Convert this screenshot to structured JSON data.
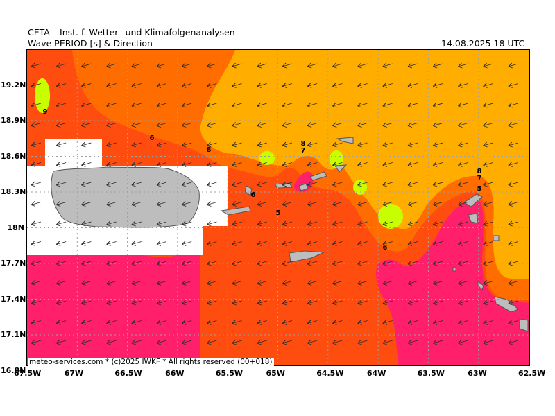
{
  "header": {
    "org_line": "CETA – Inst. f. Wetter– und Klimafolgenanalysen –",
    "product_line": "Wave PERIOD [s] & Direction",
    "valid_time": "14.08.2025 18 UTC"
  },
  "map": {
    "lon_ticks": [
      "67.5W",
      "67W",
      "66.5W",
      "66W",
      "65.5W",
      "65W",
      "64.5W",
      "64W",
      "63.5W",
      "63W",
      "62.5W"
    ],
    "lat_ticks": [
      "19.2N",
      "18.9N",
      "18.6N",
      "18.3N",
      "18N",
      "17.7N",
      "17.4N",
      "17.1N",
      "16.8N"
    ],
    "contour_labels": [
      "9",
      "6",
      "8",
      "8",
      "7",
      "6",
      "5",
      "8",
      "7",
      "5",
      "6"
    ],
    "colors": {
      "period_5": "#ff1f6b",
      "period_6": "#ff4d10",
      "period_7": "#ff6c00",
      "period_8": "#ffae00",
      "period_9": "#c8ff00",
      "land": "#bdbdbd",
      "no_data": "#ffffff"
    },
    "wave_direction": "from east (arrows pointing west-southwest)"
  },
  "footer": {
    "credit": "meteo-services.com * (c)2025 IWKF * All rights reserved (00+018)"
  }
}
